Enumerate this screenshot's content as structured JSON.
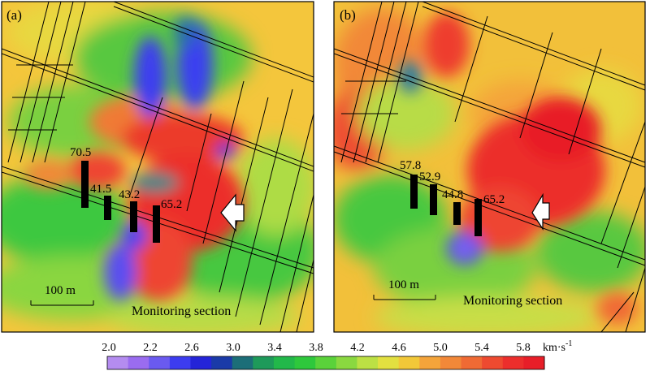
{
  "figure": {
    "colorbar": {
      "ticks": [
        "2.0",
        "2.2",
        "2.6",
        "3.0",
        "3.4",
        "3.8",
        "4.2",
        "4.6",
        "5.0",
        "5.4",
        "5.8"
      ],
      "unit": "km·s",
      "unit_sup": "-1",
      "colors": [
        "#b48cf0",
        "#9a6cf0",
        "#6a5af0",
        "#3c3cf0",
        "#2424d8",
        "#1a3aa8",
        "#1c6e78",
        "#1e9a5a",
        "#22b84a",
        "#2ec83c",
        "#5ad23a",
        "#8ad840",
        "#bce044",
        "#e2e040",
        "#f2c838",
        "#f4a43a",
        "#f28838",
        "#f06a34",
        "#ee4a30",
        "#ec2e2c",
        "#e81e28"
      ]
    },
    "panels": [
      {
        "id": "a",
        "label": "(a)",
        "bar_labels": [
          "70.5",
          "41.5",
          "43.2",
          "65.2"
        ],
        "bar_values": [
          70.5,
          41.5,
          43.2,
          65.2
        ],
        "scale_label": "100 m",
        "section_label": "Monitoring section"
      },
      {
        "id": "b",
        "label": "(b)",
        "bar_labels": [
          "57.8",
          "52.9",
          "44.8",
          "65.2"
        ],
        "bar_values": [
          57.8,
          52.9,
          44.8,
          65.2
        ],
        "scale_label": "100 m",
        "section_label": "Monitoring section"
      }
    ]
  }
}
